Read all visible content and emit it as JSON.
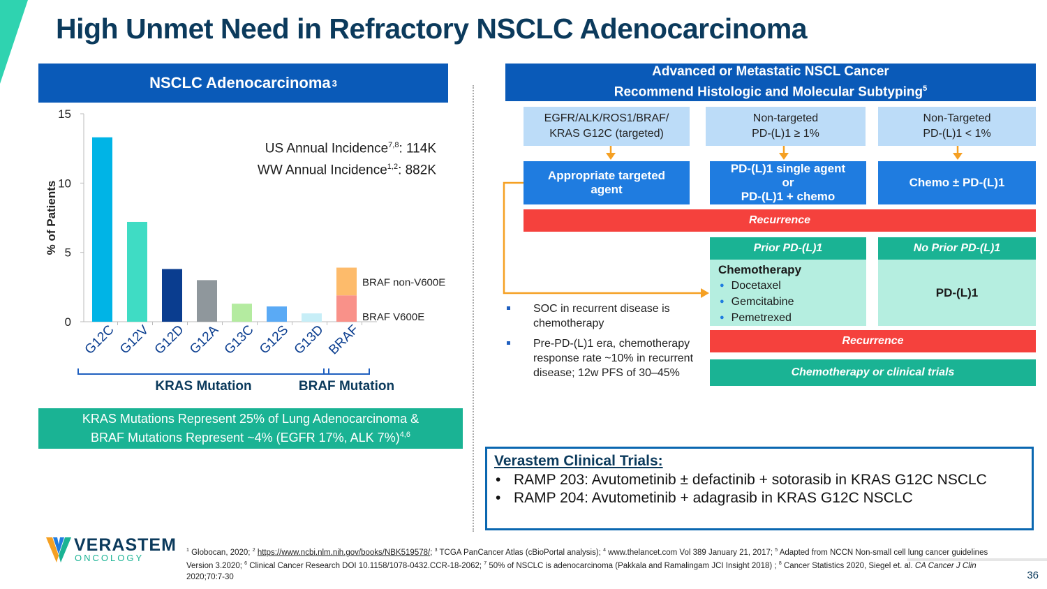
{
  "title": "High Unmet Need in Refractory NSCLC Adenocarcinoma",
  "left_header": {
    "text": "NSCLC Adenocarcinoma",
    "sup": "3"
  },
  "incidence": {
    "us_prefix": "US Annual Incidence",
    "us_sup": "7,8",
    "us_value": ": 114K",
    "ww_prefix": "WW Annual Incidence",
    "ww_sup": "1,2",
    "ww_value": ": 882K"
  },
  "chart_data": {
    "type": "bar",
    "ylabel": "% of Patients",
    "ylim": [
      0,
      15
    ],
    "yticks": [
      0,
      5,
      10,
      15
    ],
    "categories": [
      "G12C",
      "G12V",
      "G12D",
      "G12A",
      "G13C",
      "G12S",
      "G13D",
      "BRAF"
    ],
    "values": [
      13.3,
      7.2,
      3.8,
      3.0,
      1.3,
      1.1,
      0.6,
      3.9
    ],
    "colors": [
      "#00b4e6",
      "#3fdcc4",
      "#0a3d8f",
      "#8f979c",
      "#b4eba0",
      "#5aaaf5",
      "#c7eef7",
      "#f99189"
    ],
    "braf_stack": [
      {
        "name": "BRAF V600E",
        "value": 1.9,
        "color": "#f99189"
      },
      {
        "name": "BRAF non-V600E",
        "value": 2.0,
        "color": "#fdbb6b"
      }
    ],
    "legend": {
      "non_v600e": "BRAF non-V600E",
      "v600e": "BRAF V600E"
    },
    "groups": {
      "kras": "KRAS Mutation",
      "braf": "BRAF Mutation"
    }
  },
  "teal_box": {
    "line1": "KRAS Mutations Represent 25% of Lung Adenocarcinoma &",
    "line2": "BRAF Mutations Represent ~4% (EGFR 17%, ALK 7%)",
    "sup": "4,6"
  },
  "right_header": {
    "line1": "Advanced or Metastatic NSCL Cancer",
    "line2": "Recommend Histologic and Molecular Subtyping",
    "sup": "5"
  },
  "subtypes": [
    {
      "line1": "EGFR/ALK/ROS1/BRAF/",
      "line2": "KRAS G12C (targeted)"
    },
    {
      "line1": "Non-targeted",
      "line2": "PD-(L)1 ≥ 1%"
    },
    {
      "line1": "Non-Targeted",
      "line2": "PD-(L)1 < 1%"
    }
  ],
  "treatments": [
    {
      "line1": "Appropriate targeted",
      "line2": "agent",
      "line3": ""
    },
    {
      "line1": "PD-(L)1 single agent",
      "line2": "or",
      "line3": "PD-(L)1 + chemo"
    },
    {
      "line1": "Chemo ± PD-(L)1",
      "line2": "",
      "line3": ""
    }
  ],
  "recurrence1": "Recurrence",
  "prior_header": "Prior PD-(L)1",
  "no_prior_header": "No Prior PD-(L)1",
  "chemo": {
    "title": "Chemotherapy",
    "items": [
      "Docetaxel",
      "Gemcitabine",
      "Pemetrexed"
    ]
  },
  "no_prior_text": "PD-(L)1",
  "recurrence2": "Recurrence",
  "final_box": "Chemotherapy or clinical trials",
  "soc_bullets": [
    "SOC in recurrent disease is chemotherapy",
    "Pre-PD-(L)1 era, chemotherapy response rate ~10% in recurrent disease; 12w PFS of 30–45%"
  ],
  "trials": {
    "title": "Verastem Clinical Trials:",
    "items": [
      "RAMP 203: Avutometinib ± defactinib + sotorasib in KRAS G12C NSCLC",
      "RAMP 204: Avutometinib + adagrasib in KRAS G12C NSCLC"
    ]
  },
  "logo": {
    "name": "VERASTEM",
    "sub": "ONCOLOGY"
  },
  "footnote": {
    "p1": " Globocan, 2020; ",
    "link": "https://www.ncbi.nlm.nih.gov/books/NBK519578/",
    "p2": "; ",
    "p3": " TCGA PanCancer Atlas (cBioPortal analysis); ",
    "p4": " www.thelancet.com Vol 389 January 21, 2017; ",
    "p5": " Adapted from NCCN Non-small cell lung cancer guidelines Version 3.2020; ",
    "p6": " Clinical Cancer Research DOI 10.1158/1078-0432.CCR-18-2062; ",
    "p7": " 50% of NSCLC is adenocarcinoma (Pakkala and Ramalingam JCI Insight 2018) ; ",
    "p8": " Cancer Statistics 2020, Siegel et. al. ",
    "journal": "CA Cancer J Clin",
    "p9": " 2020;70:7-30"
  },
  "page_number": "36"
}
